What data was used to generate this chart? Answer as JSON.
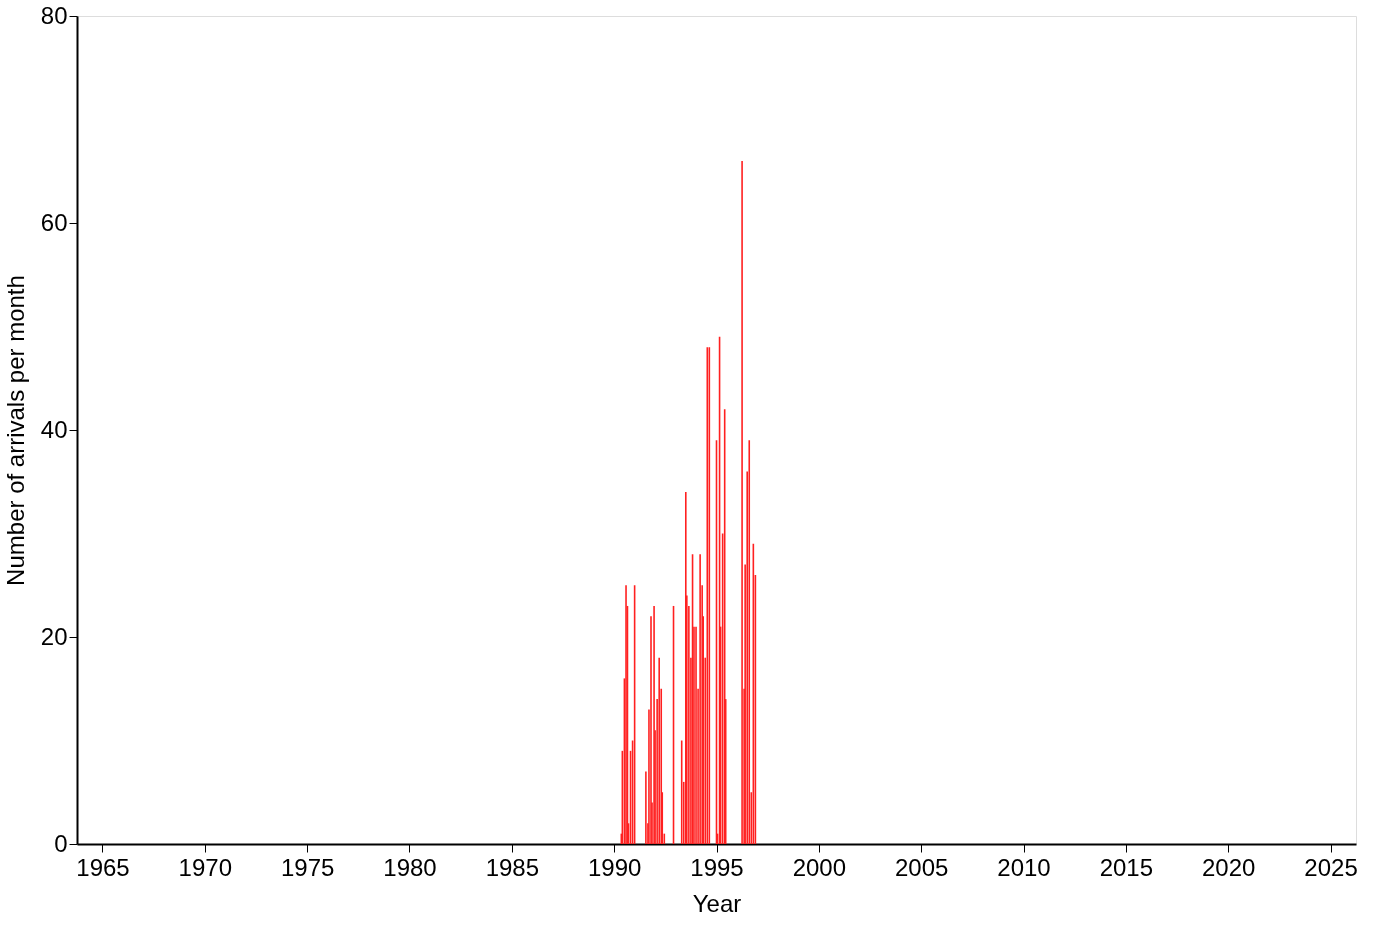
{
  "chart_data": {
    "type": "bar",
    "xlabel": "Year",
    "ylabel": "Number of arrivals per month",
    "color": "#ff2020",
    "x": [
      1990.35,
      1990.4,
      1990.5,
      1990.58,
      1990.65,
      1990.7,
      1990.8,
      1990.9,
      1991.0,
      1991.55,
      1991.65,
      1991.7,
      1991.8,
      1991.85,
      1991.95,
      1992.0,
      1992.1,
      1992.2,
      1992.3,
      1992.35,
      1992.45,
      1992.9,
      1993.3,
      1993.4,
      1993.5,
      1993.55,
      1993.65,
      1993.75,
      1993.83,
      1993.9,
      1994.0,
      1994.1,
      1994.2,
      1994.3,
      1994.35,
      1994.45,
      1994.55,
      1994.65,
      1995.0,
      1995.05,
      1995.15,
      1995.2,
      1995.3,
      1995.4,
      1995.45,
      1996.25,
      1996.35,
      1996.4,
      1996.5,
      1996.6,
      1996.7,
      1996.8,
      1996.9
    ],
    "values": [
      1,
      9,
      16,
      25,
      23,
      2,
      9,
      10,
      25,
      7,
      2,
      13,
      22,
      4,
      23,
      11,
      14,
      18,
      15,
      5,
      1,
      23,
      10,
      6,
      34,
      24,
      23,
      18,
      28,
      21,
      21,
      15,
      28,
      25,
      22,
      18,
      48,
      48,
      39,
      1,
      49,
      21,
      30,
      42,
      14,
      66,
      15,
      27,
      36,
      39,
      5,
      29,
      26
    ],
    "xlim": [
      1964,
      2026
    ],
    "xticks": [
      1965,
      1970,
      1975,
      1980,
      1985,
      1990,
      1995,
      2000,
      2005,
      2010,
      2015,
      2020,
      2025
    ],
    "ylim": [
      0,
      80
    ],
    "yticks": [
      0,
      20,
      40,
      60,
      80
    ],
    "grid": false
  }
}
